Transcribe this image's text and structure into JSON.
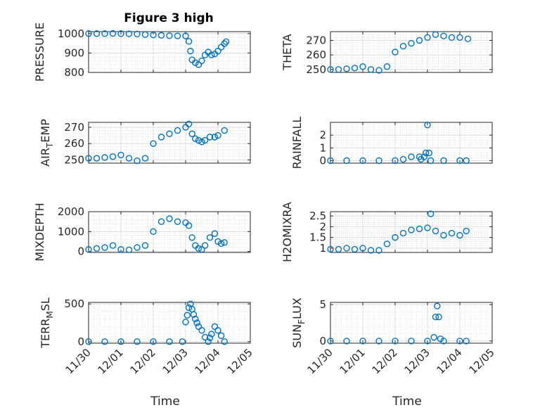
{
  "figure": {
    "title": "Figure 3 high",
    "marker_color": "#0072BD",
    "grid": true,
    "x_ticks": [
      "11/30",
      "12/01",
      "12/02",
      "12/03",
      "12/04",
      "12/05"
    ],
    "x_label": "Time"
  },
  "chart_data": [
    {
      "type": "scatter",
      "ylabel": "PRESSURE",
      "ylim": [
        800,
        1010
      ],
      "yticks": [
        800,
        900,
        1000
      ],
      "ytick_labels": [
        "800",
        "900",
        "1000"
      ],
      "x": [
        0,
        0.25,
        0.5,
        0.75,
        1,
        1.25,
        1.5,
        1.75,
        2,
        2.25,
        2.5,
        2.75,
        3,
        3.1,
        3.15,
        3.2,
        3.3,
        3.4,
        3.5,
        3.6,
        3.7,
        3.8,
        3.9,
        4,
        4.1,
        4.2,
        4.25
      ],
      "y": [
        1000,
        1000,
        1000,
        1001,
        1000,
        999,
        998,
        995,
        993,
        991,
        989,
        988,
        988,
        960,
        910,
        865,
        850,
        840,
        860,
        890,
        905,
        890,
        895,
        910,
        930,
        948,
        958
      ]
    },
    {
      "type": "scatter",
      "ylabel": "THETA",
      "ylim": [
        248,
        276
      ],
      "yticks": [
        250,
        260,
        270
      ],
      "ytick_labels": [
        "250",
        "260",
        "270"
      ],
      "x": [
        0,
        0.25,
        0.5,
        0.75,
        1,
        1.25,
        1.5,
        1.75,
        2,
        2.25,
        2.5,
        2.75,
        3,
        3.25,
        3.5,
        3.75,
        4,
        4.25
      ],
      "y": [
        250,
        250,
        250.5,
        251,
        252,
        250,
        249.5,
        252,
        262,
        266,
        268,
        270,
        272,
        274,
        273,
        272,
        272,
        271
      ]
    },
    {
      "type": "scatter",
      "ylabel": "AIRTEMP",
      "ylim": [
        248,
        273
      ],
      "yticks": [
        250,
        260,
        270
      ],
      "ytick_labels": [
        "250",
        "260",
        "270"
      ],
      "x": [
        0,
        0.25,
        0.5,
        0.75,
        1,
        1.25,
        1.5,
        1.75,
        2,
        2.25,
        2.5,
        2.75,
        3,
        3.1,
        3.2,
        3.3,
        3.4,
        3.5,
        3.6,
        3.75,
        3.9,
        4,
        4.2
      ],
      "y": [
        251,
        251,
        251.5,
        252,
        253,
        251,
        249.5,
        251,
        260,
        264,
        266,
        268,
        270,
        272,
        266,
        263,
        262,
        261,
        262,
        264,
        264,
        265,
        268
      ]
    },
    {
      "type": "scatter",
      "ylabel": "RAINFALL",
      "ylim": [
        -0.2,
        3
      ],
      "yticks": [
        0,
        1,
        2
      ],
      "ytick_labels": [
        "0",
        "1",
        "2"
      ],
      "x": [
        0,
        0.5,
        1,
        1.5,
        2,
        2.25,
        2.5,
        2.75,
        2.8,
        2.9,
        2.95,
        3,
        3.05,
        3.1,
        3.5,
        4,
        4.2
      ],
      "y": [
        0,
        0,
        0,
        0,
        0,
        0.1,
        0.3,
        0.3,
        0.1,
        0.3,
        0.6,
        2.8,
        0.6,
        0,
        0,
        0,
        0
      ]
    },
    {
      "type": "scatter",
      "ylabel": "MIXDEPTH",
      "ylim": [
        -50,
        2000
      ],
      "yticks": [
        0,
        1000,
        2000
      ],
      "ytick_labels": [
        "0",
        "1000",
        "2000"
      ],
      "x": [
        0,
        0.25,
        0.5,
        0.75,
        1,
        1.25,
        1.5,
        1.75,
        2,
        2.25,
        2.5,
        2.75,
        3,
        3.1,
        3.2,
        3.3,
        3.4,
        3.5,
        3.6,
        3.75,
        3.9,
        4,
        4.1,
        4.2
      ],
      "y": [
        100,
        150,
        200,
        300,
        100,
        80,
        200,
        300,
        1000,
        1500,
        1650,
        1500,
        1450,
        1300,
        700,
        300,
        150,
        100,
        300,
        700,
        900,
        500,
        400,
        450
      ]
    },
    {
      "type": "scatter",
      "ylabel": "H2OMIXRA",
      "ylim": [
        0.8,
        2.7
      ],
      "yticks": [
        1,
        1.5,
        2,
        2.5
      ],
      "ytick_labels": [
        "1",
        "1.5",
        "2",
        "2.5"
      ],
      "x": [
        0,
        0.25,
        0.5,
        0.75,
        1,
        1.25,
        1.5,
        1.75,
        2,
        2.25,
        2.5,
        2.75,
        3,
        3.1,
        3.25,
        3.5,
        3.75,
        4,
        4.2
      ],
      "y": [
        0.95,
        0.95,
        1,
        0.95,
        1,
        0.9,
        0.9,
        1.2,
        1.5,
        1.7,
        1.85,
        1.9,
        1.95,
        2.6,
        1.8,
        1.6,
        1.7,
        1.6,
        1.8
      ]
    },
    {
      "type": "scatter",
      "ylabel": "TERRMSL",
      "ylim": [
        -20,
        520
      ],
      "yticks": [
        0,
        500
      ],
      "ytick_labels": [
        "0",
        "500"
      ],
      "x": [
        0,
        0.5,
        1,
        1.5,
        2,
        2.5,
        2.9,
        3,
        3.05,
        3.1,
        3.15,
        3.2,
        3.25,
        3.3,
        3.35,
        3.4,
        3.5,
        3.6,
        3.7,
        3.75,
        3.8,
        3.9,
        4,
        4.1,
        4.2
      ],
      "y": [
        0,
        0,
        0,
        0,
        0,
        0,
        0,
        260,
        350,
        450,
        500,
        430,
        360,
        300,
        250,
        200,
        150,
        60,
        0,
        50,
        100,
        200,
        150,
        80,
        0
      ]
    },
    {
      "type": "scatter",
      "ylabel": "SUNFLUX",
      "ylim": [
        -0.3,
        5.3
      ],
      "yticks": [
        0,
        5
      ],
      "ytick_labels": [
        "0",
        "5"
      ],
      "x": [
        0,
        0.5,
        1,
        1.5,
        2,
        2.5,
        3,
        3.2,
        3.25,
        3.3,
        3.35,
        3.4,
        3.5,
        4,
        4.2
      ],
      "y": [
        0,
        0,
        0,
        0,
        0,
        0,
        0,
        0.5,
        3.3,
        4.8,
        3.3,
        0.3,
        0,
        0,
        0
      ]
    }
  ]
}
